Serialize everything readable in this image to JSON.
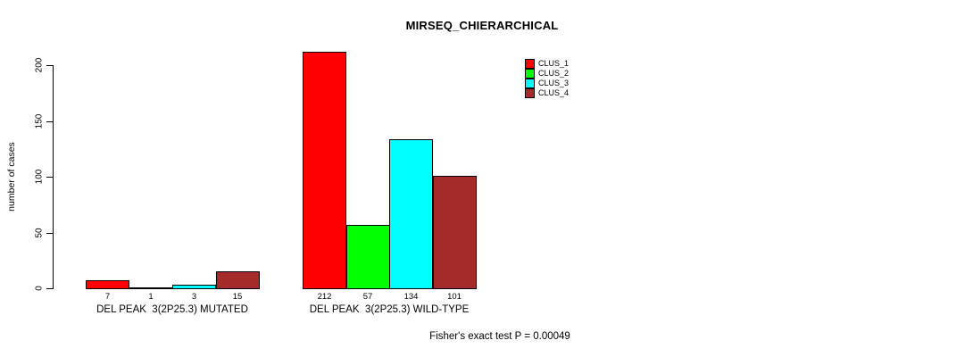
{
  "title": "MIRSEQ_CHIERARCHICAL",
  "ylabel": "number of cases",
  "footer": "Fisher's exact test P = 0.00049",
  "chart_data": {
    "type": "bar",
    "title": "MIRSEQ_CHIERARCHICAL",
    "xlabel": "",
    "ylabel": "number of cases",
    "categories": [
      "DEL PEAK  3(2P25.3) MUTATED",
      "DEL PEAK  3(2P25.3) WILD-TYPE"
    ],
    "series": [
      {
        "name": "CLUS_1",
        "color": "#FF0000",
        "values": [
          7,
          212
        ]
      },
      {
        "name": "CLUS_2",
        "color": "#00FF00",
        "values": [
          1,
          57
        ]
      },
      {
        "name": "CLUS_3",
        "color": "#00FFFF",
        "values": [
          3,
          134
        ]
      },
      {
        "name": "CLUS_4",
        "color": "#A52A2A",
        "values": [
          15,
          101
        ]
      }
    ],
    "bar_value_labels": [
      [
        "7",
        "1",
        "3",
        "15"
      ],
      [
        "212",
        "57",
        "134",
        "101"
      ]
    ],
    "yticks": [
      0,
      50,
      100,
      150,
      200
    ],
    "ylim": [
      0,
      200
    ],
    "grid": false,
    "legend_position": "top-right",
    "annotation": "Fisher's exact test P = 0.00049"
  }
}
